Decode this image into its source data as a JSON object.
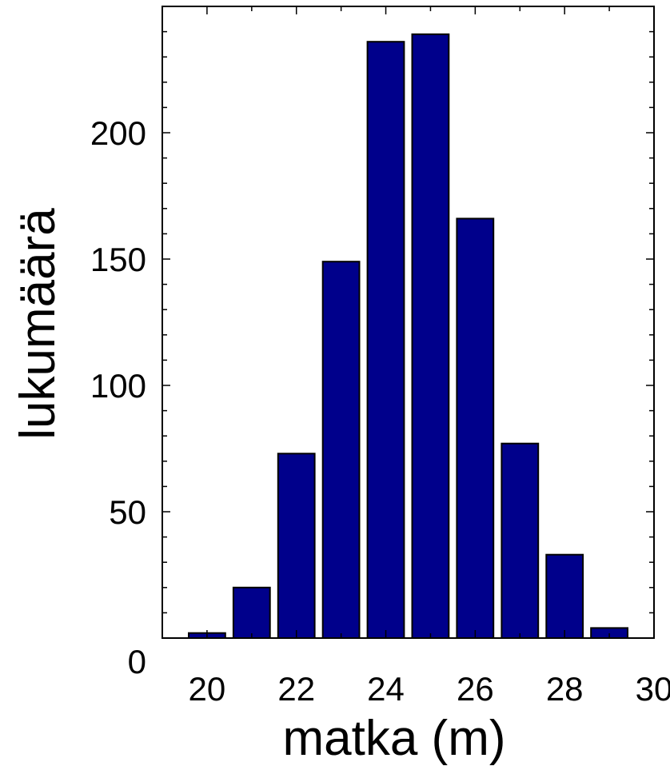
{
  "chart_data": {
    "type": "bar",
    "title": "",
    "xlabel": "matka (m)",
    "ylabel": "lukumäärä",
    "x": [
      20,
      21,
      22,
      23,
      24,
      25,
      26,
      27,
      28,
      29
    ],
    "values": [
      2,
      20,
      73,
      149,
      236,
      239,
      166,
      77,
      33,
      4
    ],
    "xlim": [
      19,
      30
    ],
    "ylim": [
      0,
      250
    ],
    "xticks": [
      20,
      22,
      24,
      26,
      28,
      30
    ],
    "yticks": [
      0,
      50,
      100,
      150,
      200
    ],
    "bar_color": "#00008b",
    "edge_color": "#000000",
    "grid": false,
    "legend": "none"
  }
}
